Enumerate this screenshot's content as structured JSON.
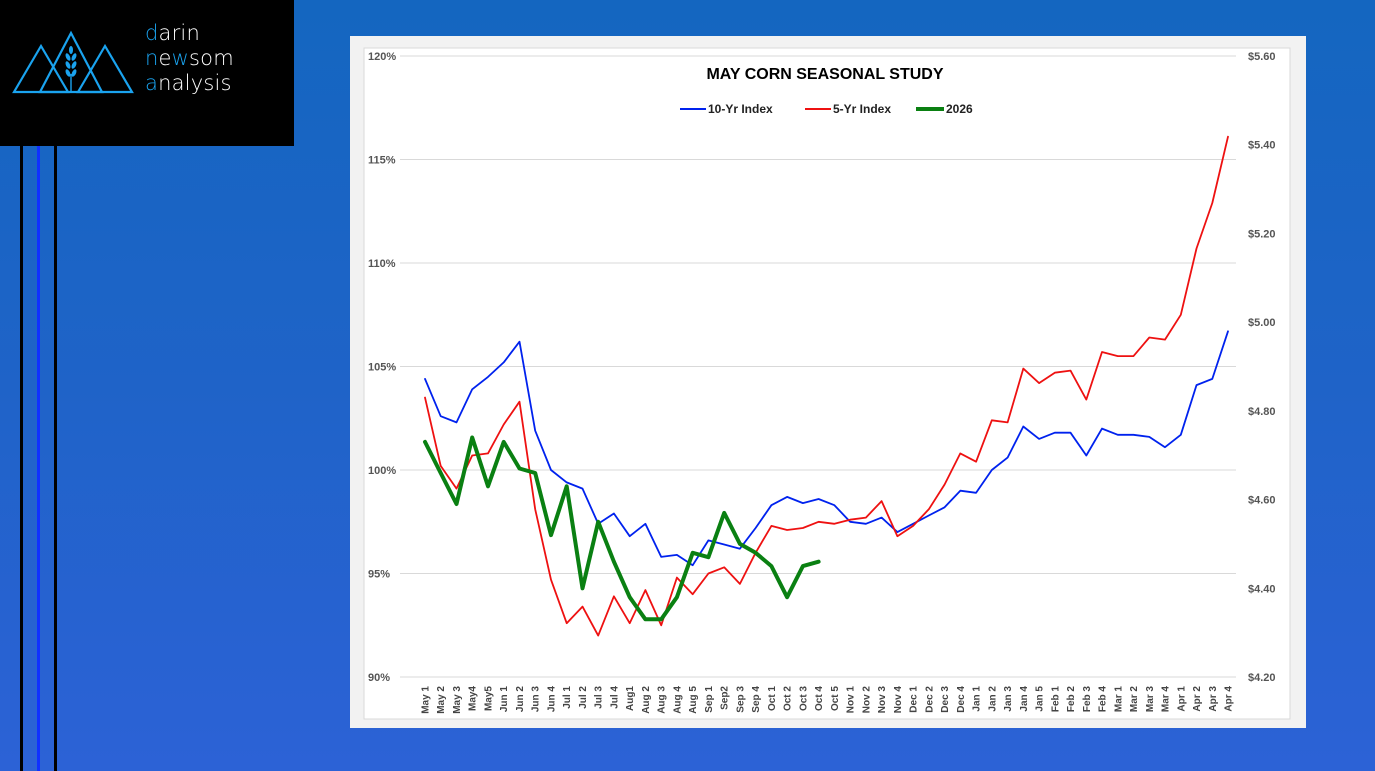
{
  "brand": {
    "line1_initial": "d",
    "line1_rest": "arin",
    "line2_initial": "n",
    "line2_mid": "e",
    "line2_hl": "w",
    "line2_rest": "som",
    "line3_initial": "a",
    "line3_rest": "nalysis",
    "logo_icon": "mountains-wheat-icon",
    "accent_color": "#1aa3ef"
  },
  "chart_data": {
    "type": "line",
    "title": "MAY CORN SEASONAL STUDY",
    "xlabel": "",
    "ylabel": "",
    "y_left": {
      "ticks": [
        "90%",
        "95%",
        "100%",
        "105%",
        "110%",
        "115%",
        "120%"
      ],
      "range": [
        90,
        120
      ],
      "step": 5
    },
    "y_right": {
      "ticks": [
        "$4.20",
        "$4.40",
        "$4.60",
        "$4.80",
        "$5.00",
        "$5.20",
        "$5.40",
        "$5.60"
      ],
      "range": [
        4.2,
        5.6
      ],
      "step": 0.2
    },
    "grid": true,
    "legend_position": "top-center",
    "categories": [
      "May 1",
      "May 2",
      "May 3",
      "May4",
      "May5",
      "Jun 1",
      "Jun 2",
      "Jun 3",
      "Jun 4",
      "Jul 1",
      "Jul 2",
      "Jul 3",
      "Jul 4",
      "Aug1",
      "Aug 2",
      "Aug 3",
      "Aug 4",
      "Aug 5",
      "Sep 1",
      "Sep2",
      "Sep 3",
      "Sep 4",
      "Oct 1",
      "Oct 2",
      "Oct 3",
      "Oct 4",
      "Oct 5",
      "Nov 1",
      "Nov 2",
      "Nov 3",
      "Nov 4",
      "Dec 1",
      "Dec 2",
      "Dec 3",
      "Dec 4",
      "Jan 1",
      "Jan 2",
      "Jan 3",
      "Jan 4",
      "Jan 5",
      "Feb 1",
      "Feb 2",
      "Feb 3",
      "Feb 4",
      "Mar 1",
      "Mar 2",
      "Mar 3",
      "Mar 4",
      "Apr 1",
      "Apr 2",
      "Apr 3",
      "Apr 4"
    ],
    "series": [
      {
        "name": "10-Yr Index",
        "axis": "left",
        "color": "#0022ee",
        "values": [
          104.4,
          102.6,
          102.3,
          103.9,
          104.5,
          105.2,
          106.2,
          101.9,
          100.0,
          99.4,
          99.1,
          97.4,
          97.9,
          96.8,
          97.4,
          95.8,
          95.9,
          95.4,
          96.6,
          96.4,
          96.2,
          97.2,
          98.3,
          98.7,
          98.4,
          98.6,
          98.3,
          97.5,
          97.4,
          97.7,
          97.0,
          97.4,
          97.8,
          98.2,
          99.0,
          98.9,
          100.0,
          100.6,
          102.1,
          101.5,
          101.8,
          101.8,
          100.7,
          102.0,
          101.7,
          101.7,
          101.6,
          101.1,
          101.7,
          104.1,
          104.4,
          106.7
        ]
      },
      {
        "name": "5-Yr Index",
        "axis": "left",
        "color": "#ee1111",
        "values": [
          103.5,
          100.2,
          99.1,
          100.7,
          100.8,
          102.2,
          103.3,
          98.1,
          94.7,
          92.6,
          93.4,
          92.0,
          93.9,
          92.6,
          94.2,
          92.5,
          94.8,
          94.0,
          95.0,
          95.3,
          94.5,
          96.0,
          97.3,
          97.1,
          97.2,
          97.5,
          97.4,
          97.6,
          97.7,
          98.5,
          96.8,
          97.3,
          98.1,
          99.3,
          100.8,
          100.4,
          102.4,
          102.3,
          104.9,
          104.2,
          104.7,
          104.8,
          103.4,
          105.7,
          105.5,
          105.5,
          106.4,
          106.3,
          107.5,
          110.7,
          112.9,
          116.1
        ]
      },
      {
        "name": "2026",
        "axis": "right",
        "color": "#0a8012",
        "values": [
          4.73,
          4.66,
          4.59,
          4.74,
          4.63,
          4.73,
          4.67,
          4.66,
          4.52,
          4.63,
          4.4,
          4.55,
          4.46,
          4.38,
          4.33,
          4.33,
          4.38,
          4.48,
          4.47,
          4.57,
          4.5,
          4.48,
          4.45,
          4.38,
          4.45,
          4.46
        ]
      }
    ]
  }
}
